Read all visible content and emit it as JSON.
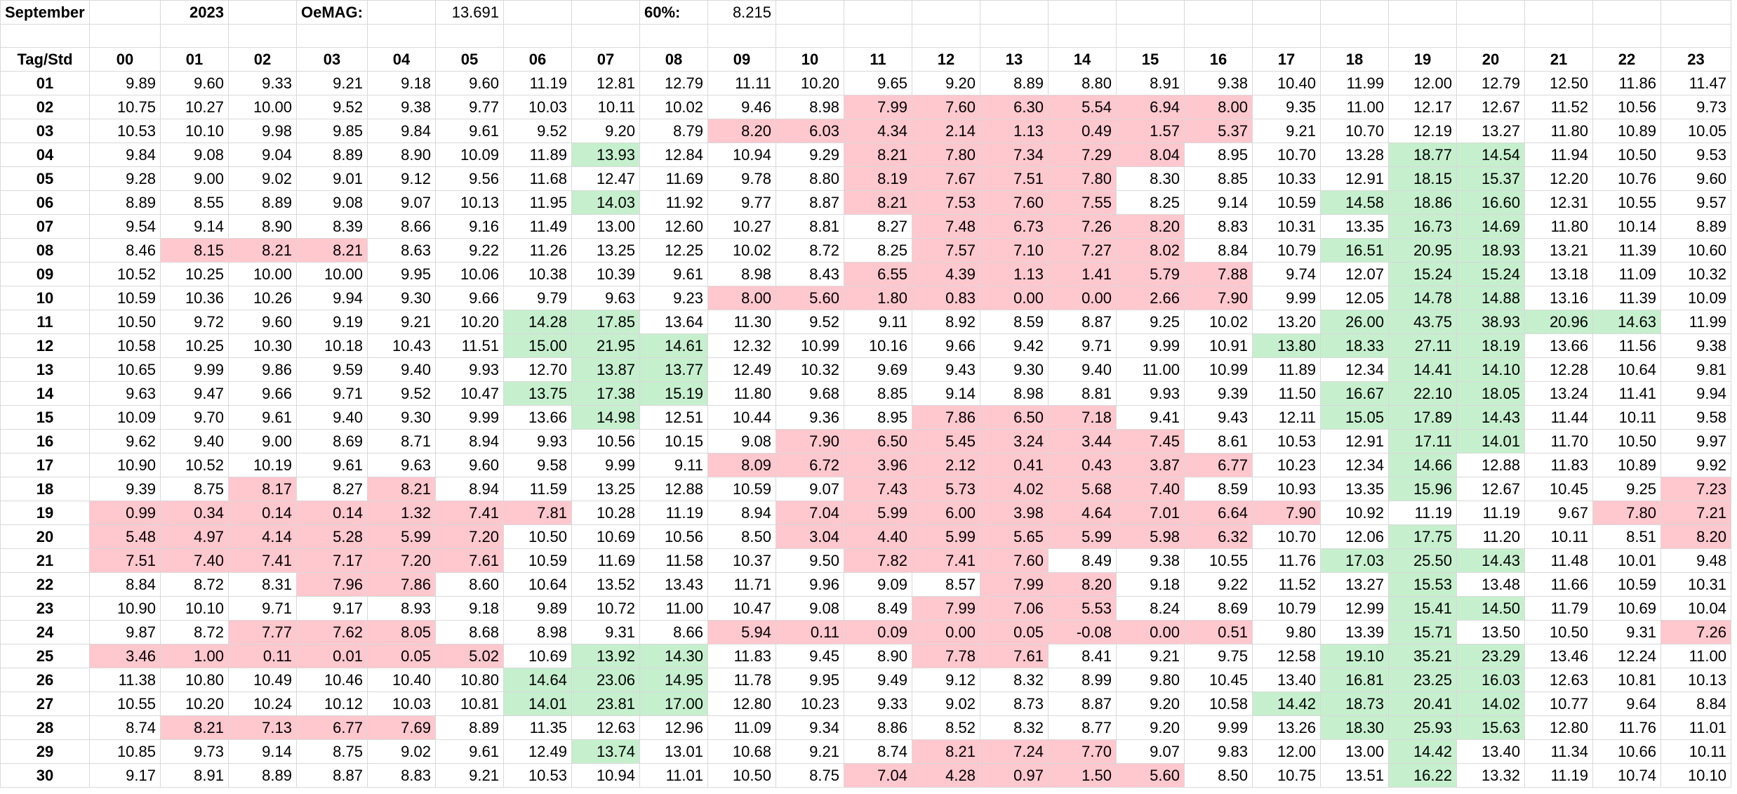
{
  "sheet": {
    "month": "September",
    "year": "2023",
    "oemag_label": "OeMAG:",
    "oemag_value": "13.691",
    "pct_label": "60%:",
    "pct_value": "8.215",
    "corner_label": "Tag/Std",
    "hours": [
      "00",
      "01",
      "02",
      "03",
      "04",
      "05",
      "06",
      "07",
      "08",
      "09",
      "10",
      "11",
      "12",
      "13",
      "14",
      "15",
      "16",
      "17",
      "18",
      "19",
      "20",
      "21",
      "22",
      "23"
    ],
    "rows": [
      {
        "day": "01",
        "values": [
          "9.89",
          "9.60",
          "9.33",
          "9.21",
          "9.18",
          "9.60",
          "11.19",
          "12.81",
          "12.79",
          "11.11",
          "10.20",
          "9.65",
          "9.20",
          "8.89",
          "8.80",
          "8.91",
          "9.38",
          "10.40",
          "11.99",
          "12.00",
          "12.79",
          "12.50",
          "11.86",
          "11.47"
        ]
      },
      {
        "day": "02",
        "values": [
          "10.75",
          "10.27",
          "10.00",
          "9.52",
          "9.38",
          "9.77",
          "10.03",
          "10.11",
          "10.02",
          "9.46",
          "8.98",
          "7.99",
          "7.60",
          "6.30",
          "5.54",
          "6.94",
          "8.00",
          "9.35",
          "11.00",
          "12.17",
          "12.67",
          "11.52",
          "10.56",
          "9.73"
        ]
      },
      {
        "day": "03",
        "values": [
          "10.53",
          "10.10",
          "9.98",
          "9.85",
          "9.84",
          "9.61",
          "9.52",
          "9.20",
          "8.79",
          "8.20",
          "6.03",
          "4.34",
          "2.14",
          "1.13",
          "0.49",
          "1.57",
          "5.37",
          "9.21",
          "10.70",
          "12.19",
          "13.27",
          "11.80",
          "10.89",
          "10.05"
        ]
      },
      {
        "day": "04",
        "values": [
          "9.84",
          "9.08",
          "9.04",
          "8.89",
          "8.90",
          "10.09",
          "11.89",
          "13.93",
          "12.84",
          "10.94",
          "9.29",
          "8.21",
          "7.80",
          "7.34",
          "7.29",
          "8.04",
          "8.95",
          "10.70",
          "13.28",
          "18.77",
          "14.54",
          "11.94",
          "10.50",
          "9.53"
        ]
      },
      {
        "day": "05",
        "values": [
          "9.28",
          "9.00",
          "9.02",
          "9.01",
          "9.12",
          "9.56",
          "11.68",
          "12.47",
          "11.69",
          "9.78",
          "8.80",
          "8.19",
          "7.67",
          "7.51",
          "7.80",
          "8.30",
          "8.85",
          "10.33",
          "12.91",
          "18.15",
          "15.37",
          "12.20",
          "10.76",
          "9.60"
        ]
      },
      {
        "day": "06",
        "values": [
          "8.89",
          "8.55",
          "8.89",
          "9.08",
          "9.07",
          "10.13",
          "11.95",
          "14.03",
          "11.92",
          "9.77",
          "8.87",
          "8.21",
          "7.53",
          "7.60",
          "7.55",
          "8.25",
          "9.14",
          "10.59",
          "14.58",
          "18.86",
          "16.60",
          "12.31",
          "10.55",
          "9.57"
        ]
      },
      {
        "day": "07",
        "values": [
          "9.54",
          "9.14",
          "8.90",
          "8.39",
          "8.66",
          "9.16",
          "11.49",
          "13.00",
          "12.60",
          "10.27",
          "8.81",
          "8.27",
          "7.48",
          "6.73",
          "7.26",
          "8.20",
          "8.83",
          "10.31",
          "13.35",
          "16.73",
          "14.69",
          "11.80",
          "10.14",
          "8.89"
        ]
      },
      {
        "day": "08",
        "values": [
          "8.46",
          "8.15",
          "8.21",
          "8.21",
          "8.63",
          "9.22",
          "11.26",
          "13.25",
          "12.25",
          "10.02",
          "8.72",
          "8.25",
          "7.57",
          "7.10",
          "7.27",
          "8.02",
          "8.84",
          "10.79",
          "16.51",
          "20.95",
          "18.93",
          "13.21",
          "11.39",
          "10.60"
        ]
      },
      {
        "day": "09",
        "values": [
          "10.52",
          "10.25",
          "10.00",
          "10.00",
          "9.95",
          "10.06",
          "10.38",
          "10.39",
          "9.61",
          "8.98",
          "8.43",
          "6.55",
          "4.39",
          "1.13",
          "1.41",
          "5.79",
          "7.88",
          "9.74",
          "12.07",
          "15.24",
          "15.24",
          "13.18",
          "11.09",
          "10.32"
        ]
      },
      {
        "day": "10",
        "values": [
          "10.59",
          "10.36",
          "10.26",
          "9.94",
          "9.30",
          "9.66",
          "9.79",
          "9.63",
          "9.23",
          "8.00",
          "5.60",
          "1.80",
          "0.83",
          "0.00",
          "0.00",
          "2.66",
          "7.90",
          "9.99",
          "12.05",
          "14.78",
          "14.88",
          "13.16",
          "11.39",
          "10.09"
        ]
      },
      {
        "day": "11",
        "values": [
          "10.50",
          "9.72",
          "9.60",
          "9.19",
          "9.21",
          "10.20",
          "14.28",
          "17.85",
          "13.64",
          "11.30",
          "9.52",
          "9.11",
          "8.92",
          "8.59",
          "8.87",
          "9.25",
          "10.02",
          "13.20",
          "26.00",
          "43.75",
          "38.93",
          "20.96",
          "14.63",
          "11.99"
        ]
      },
      {
        "day": "12",
        "values": [
          "10.58",
          "10.25",
          "10.30",
          "10.18",
          "10.43",
          "11.51",
          "15.00",
          "21.95",
          "14.61",
          "12.32",
          "10.99",
          "10.16",
          "9.66",
          "9.42",
          "9.71",
          "9.99",
          "10.91",
          "13.80",
          "18.33",
          "27.11",
          "18.19",
          "13.66",
          "11.56",
          "9.38"
        ]
      },
      {
        "day": "13",
        "values": [
          "10.65",
          "9.99",
          "9.86",
          "9.59",
          "9.40",
          "9.93",
          "12.70",
          "13.87",
          "13.77",
          "12.49",
          "10.32",
          "9.69",
          "9.43",
          "9.30",
          "9.40",
          "11.00",
          "10.99",
          "11.89",
          "12.34",
          "14.41",
          "14.10",
          "12.28",
          "10.64",
          "9.81"
        ]
      },
      {
        "day": "14",
        "values": [
          "9.63",
          "9.47",
          "9.66",
          "9.71",
          "9.52",
          "10.47",
          "13.75",
          "17.38",
          "15.19",
          "11.80",
          "9.68",
          "8.85",
          "9.14",
          "8.98",
          "8.81",
          "9.93",
          "9.39",
          "11.50",
          "16.67",
          "22.10",
          "18.05",
          "13.24",
          "11.41",
          "9.94"
        ]
      },
      {
        "day": "15",
        "values": [
          "10.09",
          "9.70",
          "9.61",
          "9.40",
          "9.30",
          "9.99",
          "13.66",
          "14.98",
          "12.51",
          "10.44",
          "9.36",
          "8.95",
          "7.86",
          "6.50",
          "7.18",
          "9.41",
          "9.43",
          "12.11",
          "15.05",
          "17.89",
          "14.43",
          "11.44",
          "10.11",
          "9.58"
        ]
      },
      {
        "day": "16",
        "values": [
          "9.62",
          "9.40",
          "9.00",
          "8.69",
          "8.71",
          "8.94",
          "9.93",
          "10.56",
          "10.15",
          "9.08",
          "7.90",
          "6.50",
          "5.45",
          "3.24",
          "3.44",
          "7.45",
          "8.61",
          "10.53",
          "12.91",
          "17.11",
          "14.01",
          "11.70",
          "10.50",
          "9.97"
        ]
      },
      {
        "day": "17",
        "values": [
          "10.90",
          "10.52",
          "10.19",
          "9.61",
          "9.63",
          "9.60",
          "9.58",
          "9.99",
          "9.11",
          "8.09",
          "6.72",
          "3.96",
          "2.12",
          "0.41",
          "0.43",
          "3.87",
          "6.77",
          "10.23",
          "12.34",
          "14.66",
          "12.88",
          "11.83",
          "10.89",
          "9.92"
        ]
      },
      {
        "day": "18",
        "values": [
          "9.39",
          "8.75",
          "8.17",
          "8.27",
          "8.21",
          "8.94",
          "11.59",
          "13.25",
          "12.88",
          "10.59",
          "9.07",
          "7.43",
          "5.73",
          "4.02",
          "5.68",
          "7.40",
          "8.59",
          "10.93",
          "13.35",
          "15.96",
          "12.67",
          "10.45",
          "9.25",
          "7.23"
        ]
      },
      {
        "day": "19",
        "values": [
          "0.99",
          "0.34",
          "0.14",
          "0.14",
          "1.32",
          "7.41",
          "7.81",
          "10.28",
          "11.19",
          "8.94",
          "7.04",
          "5.99",
          "6.00",
          "3.98",
          "4.64",
          "7.01",
          "6.64",
          "7.90",
          "10.92",
          "11.19",
          "11.19",
          "9.67",
          "7.80",
          "7.21"
        ]
      },
      {
        "day": "20",
        "values": [
          "5.48",
          "4.97",
          "4.14",
          "5.28",
          "5.99",
          "7.20",
          "10.50",
          "10.69",
          "10.56",
          "8.50",
          "3.04",
          "4.40",
          "5.99",
          "5.65",
          "5.99",
          "5.98",
          "6.32",
          "10.70",
          "12.06",
          "17.75",
          "11.20",
          "10.11",
          "8.51",
          "8.20"
        ]
      },
      {
        "day": "21",
        "values": [
          "7.51",
          "7.40",
          "7.41",
          "7.17",
          "7.20",
          "7.61",
          "10.59",
          "11.69",
          "11.58",
          "10.37",
          "9.50",
          "7.82",
          "7.41",
          "7.60",
          "8.49",
          "9.38",
          "10.55",
          "11.76",
          "17.03",
          "25.50",
          "14.43",
          "11.48",
          "10.01",
          "9.48"
        ]
      },
      {
        "day": "22",
        "values": [
          "8.84",
          "8.72",
          "8.31",
          "7.96",
          "7.86",
          "8.60",
          "10.64",
          "13.52",
          "13.43",
          "11.71",
          "9.96",
          "9.09",
          "8.57",
          "7.99",
          "8.20",
          "9.18",
          "9.22",
          "11.52",
          "13.27",
          "15.53",
          "13.48",
          "11.66",
          "10.59",
          "10.31"
        ]
      },
      {
        "day": "23",
        "values": [
          "10.90",
          "10.10",
          "9.71",
          "9.17",
          "8.93",
          "9.18",
          "9.89",
          "10.72",
          "11.00",
          "10.47",
          "9.08",
          "8.49",
          "7.99",
          "7.06",
          "5.53",
          "8.24",
          "8.69",
          "10.79",
          "12.99",
          "15.41",
          "14.50",
          "11.79",
          "10.69",
          "10.04"
        ]
      },
      {
        "day": "24",
        "values": [
          "9.87",
          "8.72",
          "7.77",
          "7.62",
          "8.05",
          "8.68",
          "8.98",
          "9.31",
          "8.66",
          "5.94",
          "0.11",
          "0.09",
          "0.00",
          "0.05",
          "-0.08",
          "0.00",
          "0.51",
          "9.80",
          "13.39",
          "15.71",
          "13.50",
          "10.50",
          "9.31",
          "7.26"
        ]
      },
      {
        "day": "25",
        "values": [
          "3.46",
          "1.00",
          "0.11",
          "0.01",
          "0.05",
          "5.02",
          "10.69",
          "13.92",
          "14.30",
          "11.83",
          "9.45",
          "8.90",
          "7.78",
          "7.61",
          "8.41",
          "9.21",
          "9.75",
          "12.58",
          "19.10",
          "35.21",
          "23.29",
          "13.46",
          "12.24",
          "11.00"
        ]
      },
      {
        "day": "26",
        "values": [
          "11.38",
          "10.80",
          "10.49",
          "10.46",
          "10.40",
          "10.80",
          "14.64",
          "23.06",
          "14.95",
          "11.78",
          "9.95",
          "9.49",
          "9.12",
          "8.32",
          "8.99",
          "9.80",
          "10.45",
          "13.40",
          "16.81",
          "23.25",
          "16.03",
          "12.63",
          "10.81",
          "10.13"
        ]
      },
      {
        "day": "27",
        "values": [
          "10.55",
          "10.20",
          "10.24",
          "10.12",
          "10.03",
          "10.81",
          "14.01",
          "23.81",
          "17.00",
          "12.80",
          "10.23",
          "9.33",
          "9.02",
          "8.73",
          "8.87",
          "9.20",
          "10.58",
          "14.42",
          "18.73",
          "20.41",
          "14.02",
          "10.77",
          "9.64",
          "8.84"
        ]
      },
      {
        "day": "28",
        "values": [
          "8.74",
          "8.21",
          "7.13",
          "6.77",
          "7.69",
          "8.89",
          "11.35",
          "12.63",
          "12.96",
          "11.09",
          "9.34",
          "8.86",
          "8.52",
          "8.32",
          "8.77",
          "9.20",
          "9.99",
          "13.26",
          "18.30",
          "25.93",
          "15.63",
          "12.80",
          "11.76",
          "11.01"
        ]
      },
      {
        "day": "29",
        "values": [
          "10.85",
          "9.73",
          "9.14",
          "8.75",
          "9.02",
          "9.61",
          "12.49",
          "13.74",
          "13.01",
          "10.68",
          "9.21",
          "8.74",
          "8.21",
          "7.24",
          "7.70",
          "9.07",
          "9.83",
          "12.00",
          "13.00",
          "14.42",
          "13.40",
          "11.34",
          "10.66",
          "10.11"
        ]
      },
      {
        "day": "30",
        "values": [
          "9.17",
          "8.91",
          "8.89",
          "8.87",
          "8.83",
          "9.21",
          "10.53",
          "10.94",
          "11.01",
          "10.50",
          "8.75",
          "7.04",
          "4.28",
          "0.97",
          "1.50",
          "5.60",
          "8.50",
          "10.75",
          "13.51",
          "16.22",
          "13.32",
          "11.19",
          "10.74",
          "10.10"
        ]
      }
    ],
    "highlight_low": [
      "02-11",
      "02-12",
      "02-13",
      "02-14",
      "02-15",
      "02-16",
      "03-09",
      "03-10",
      "03-11",
      "03-12",
      "03-13",
      "03-14",
      "03-15",
      "03-16",
      "04-11",
      "04-12",
      "04-13",
      "04-14",
      "04-15",
      "05-11",
      "05-12",
      "05-13",
      "05-14",
      "06-11",
      "06-12",
      "06-13",
      "06-14",
      "07-12",
      "07-13",
      "07-14",
      "07-15",
      "08-01",
      "08-02",
      "08-03",
      "08-12",
      "08-13",
      "08-14",
      "08-15",
      "09-11",
      "09-12",
      "09-13",
      "09-14",
      "09-15",
      "09-16",
      "10-09",
      "10-10",
      "10-11",
      "10-12",
      "10-13",
      "10-14",
      "10-15",
      "10-16",
      "15-12",
      "15-13",
      "15-14",
      "16-10",
      "16-11",
      "16-12",
      "16-13",
      "16-14",
      "16-15",
      "17-09",
      "17-10",
      "17-11",
      "17-12",
      "17-13",
      "17-14",
      "17-15",
      "17-16",
      "18-02",
      "18-04",
      "18-11",
      "18-12",
      "18-13",
      "18-14",
      "18-15",
      "18-23",
      "19-00",
      "19-01",
      "19-02",
      "19-03",
      "19-04",
      "19-05",
      "19-06",
      "19-10",
      "19-11",
      "19-12",
      "19-13",
      "19-14",
      "19-15",
      "19-16",
      "19-17",
      "19-22",
      "19-23",
      "20-00",
      "20-01",
      "20-02",
      "20-03",
      "20-04",
      "20-05",
      "20-10",
      "20-11",
      "20-12",
      "20-13",
      "20-14",
      "20-15",
      "20-16",
      "20-23",
      "21-00",
      "21-01",
      "21-02",
      "21-03",
      "21-04",
      "21-05",
      "21-11",
      "21-12",
      "21-13",
      "22-03",
      "22-04",
      "22-13",
      "22-14",
      "23-12",
      "23-13",
      "23-14",
      "24-02",
      "24-03",
      "24-04",
      "24-09",
      "24-10",
      "24-11",
      "24-12",
      "24-13",
      "24-14",
      "24-15",
      "24-16",
      "24-23",
      "25-00",
      "25-01",
      "25-02",
      "25-03",
      "25-04",
      "25-05",
      "25-12",
      "25-13",
      "28-01",
      "28-02",
      "28-03",
      "28-04",
      "29-12",
      "29-13",
      "29-14",
      "30-11",
      "30-12",
      "30-13",
      "30-14",
      "30-15"
    ],
    "highlight_high": [
      "04-07",
      "04-19",
      "04-20",
      "05-19",
      "05-20",
      "06-07",
      "06-18",
      "06-19",
      "06-20",
      "07-19",
      "07-20",
      "08-18",
      "08-19",
      "08-20",
      "09-19",
      "09-20",
      "10-19",
      "10-20",
      "11-06",
      "11-07",
      "11-18",
      "11-19",
      "11-20",
      "11-21",
      "11-22",
      "12-06",
      "12-07",
      "12-08",
      "12-17",
      "12-18",
      "12-19",
      "12-20",
      "13-07",
      "13-08",
      "13-19",
      "13-20",
      "14-06",
      "14-07",
      "14-08",
      "14-18",
      "14-19",
      "14-20",
      "15-07",
      "15-18",
      "15-19",
      "15-20",
      "16-19",
      "16-20",
      "17-19",
      "18-19",
      "20-19",
      "21-18",
      "21-19",
      "21-20",
      "22-19",
      "23-19",
      "23-20",
      "24-19",
      "25-07",
      "25-08",
      "25-18",
      "25-19",
      "25-20",
      "26-06",
      "26-07",
      "26-08",
      "26-18",
      "26-19",
      "26-20",
      "27-06",
      "27-07",
      "27-08",
      "27-17",
      "27-18",
      "27-19",
      "27-20",
      "28-18",
      "28-19",
      "28-20",
      "29-07",
      "29-19",
      "30-19"
    ]
  }
}
